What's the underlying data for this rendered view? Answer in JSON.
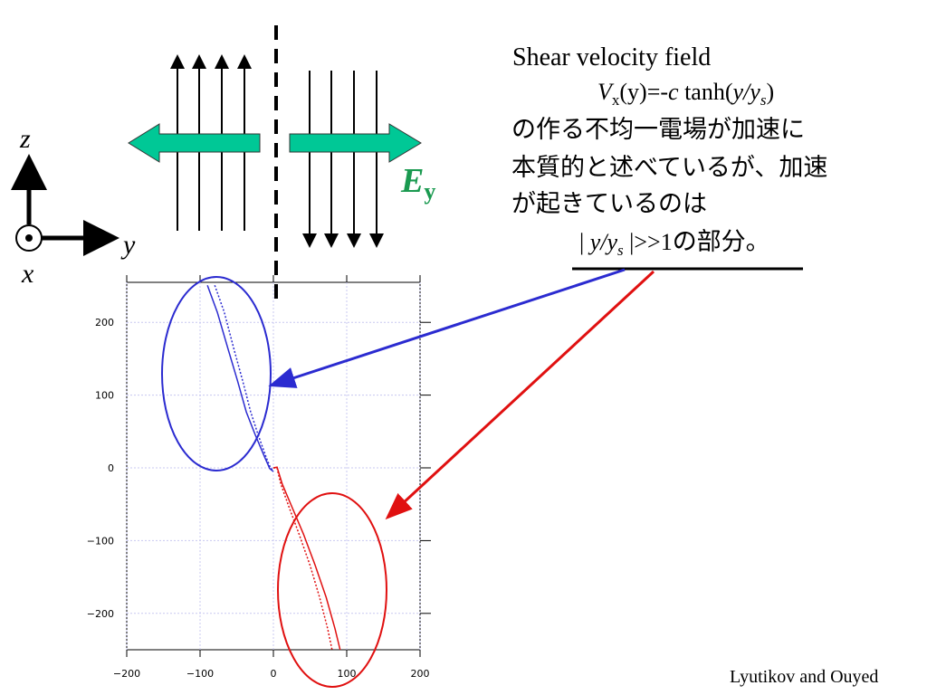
{
  "chart_data": {
    "type": "line",
    "xlim": [
      -200,
      200
    ],
    "ylim": [
      -250,
      255
    ],
    "xticks": [
      {
        "value": -200,
        "label": "−200"
      },
      {
        "value": -100,
        "label": "−100"
      },
      0,
      100,
      200
    ],
    "yticks": [
      {
        "value": -200,
        "label": "−200"
      },
      {
        "value": -100,
        "label": "−100"
      },
      0,
      100,
      200
    ],
    "grid": true,
    "series": [
      {
        "color": "#2b2bd0",
        "style": "solid",
        "x": [
          -90,
          -76.5,
          -62,
          -49,
          -37,
          -25,
          -12,
          -5,
          0
        ],
        "values": [
          251,
          214,
          164,
          120,
          77,
          46,
          15,
          -1,
          -5
        ]
      },
      {
        "color": "#2b2bd0",
        "style": "dotted",
        "x": [
          -80,
          -67,
          -54,
          -42,
          -31,
          -21,
          -10,
          -4,
          0
        ],
        "values": [
          251,
          214,
          164,
          120,
          77,
          46,
          15,
          0,
          -4
        ]
      },
      {
        "color": "#e01010",
        "style": "solid",
        "x": [
          0,
          5,
          12,
          25,
          41,
          57,
          72,
          84,
          91
        ],
        "values": [
          0,
          1,
          -22,
          -53,
          -91,
          -134,
          -178,
          -221,
          -250
        ]
      },
      {
        "color": "#e01010",
        "style": "dotted",
        "x": [
          0,
          5,
          10,
          21,
          35,
          50,
          63,
          74,
          80
        ],
        "values": [
          0,
          0,
          -22,
          -53,
          -91,
          -134,
          -178,
          -221,
          -250
        ]
      }
    ]
  },
  "slide": {
    "heading": "Shear velocity field",
    "formula": [
      "V",
      "x",
      "(y)=-",
      "c",
      " tanh(",
      "y/y",
      "s",
      ")"
    ],
    "lines": [
      "の作る不均一電場が加速に",
      "本質的と述べているが、加速",
      "が起きているのは"
    ],
    "last_line": [
      "| ",
      "y/y",
      "s",
      " |>>1",
      "の部分。"
    ],
    "credit": "Lyutikov and Ouyed",
    "axes_labels": {
      "z": "z",
      "y": "y",
      "x": "x"
    },
    "field": [
      "E",
      "y"
    ]
  }
}
